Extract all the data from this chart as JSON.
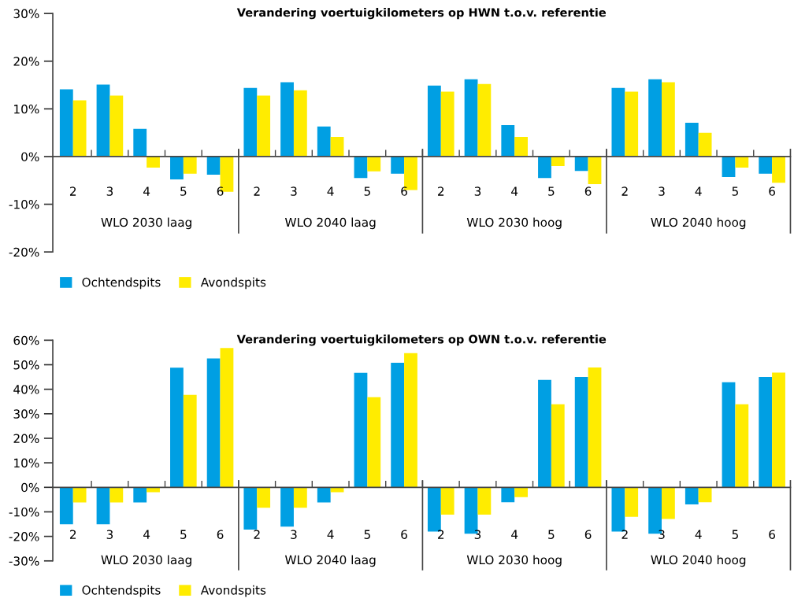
{
  "chart_data": [
    {
      "type": "bar",
      "title": "Verandering voertuigkilometers op HWN t.o.v. referentie",
      "categories": [
        "2",
        "3",
        "4",
        "5",
        "6",
        "2",
        "3",
        "4",
        "5",
        "6",
        "2",
        "3",
        "4",
        "5",
        "6",
        "2",
        "3",
        "4",
        "5",
        "6"
      ],
      "series": [
        {
          "name": "Ochtendspits",
          "color": "#009fe3",
          "values": [
            14.1,
            15.1,
            5.8,
            -4.8,
            -3.8,
            14.4,
            15.6,
            6.3,
            -4.5,
            -3.6,
            14.9,
            16.2,
            6.6,
            -4.5,
            -3.0,
            14.4,
            16.2,
            7.1,
            -4.3,
            -3.6
          ]
        },
        {
          "name": "Avondspits",
          "color": "#ffec00",
          "values": [
            11.8,
            12.8,
            -2.3,
            -3.6,
            -7.4,
            12.8,
            13.9,
            4.1,
            -3.1,
            -7.0,
            13.6,
            15.2,
            4.1,
            -2.0,
            -5.8,
            13.6,
            15.6,
            5.0,
            -2.3,
            -5.5
          ]
        }
      ],
      "annotations": [
        "WLO 2030 laag",
        "WLO 2040 laag",
        "WLO 2030 hoog",
        "WLO 2040 hoog"
      ],
      "ylim": [
        -20,
        30
      ],
      "yticks": [
        {
          "value": -20,
          "label": "-20%"
        },
        {
          "value": -10,
          "label": "-10%"
        },
        {
          "value": 0,
          "label": "0%"
        },
        {
          "value": 10,
          "label": "10%"
        },
        {
          "value": 20,
          "label": "20%"
        },
        {
          "value": 30,
          "label": "30%"
        }
      ],
      "legend": "bottom left"
    },
    {
      "type": "bar",
      "title": "Verandering voertuigkilometers op OWN t.o.v. referentie",
      "categories": [
        "2",
        "3",
        "4",
        "5",
        "6",
        "2",
        "3",
        "4",
        "5",
        "6",
        "2",
        "3",
        "4",
        "5",
        "6",
        "2",
        "3",
        "4",
        "5",
        "6"
      ],
      "series": [
        {
          "name": "Ochtendspits",
          "color": "#009fe3",
          "values": [
            -15.1,
            -15.1,
            -6.2,
            48.8,
            52.6,
            -17.2,
            -16.0,
            -6.2,
            46.7,
            50.8,
            -18.0,
            -18.9,
            -6.1,
            43.8,
            45.0,
            -18.0,
            -18.9,
            -7.0,
            42.9,
            45.0
          ]
        },
        {
          "name": "Avondspits",
          "color": "#ffec00",
          "values": [
            -6.2,
            -6.2,
            -2.0,
            37.7,
            56.8,
            -8.3,
            -8.3,
            -2.0,
            36.8,
            54.7,
            -11.1,
            -11.1,
            -4.0,
            33.9,
            48.9,
            -12.0,
            -12.9,
            -6.1,
            33.9,
            46.8
          ]
        }
      ],
      "annotations": [
        "WLO 2030 laag",
        "WLO 2040 laag",
        "WLO 2030 hoog",
        "WLO 2040 hoog"
      ],
      "ylim": [
        -30,
        60
      ],
      "yticks": [
        {
          "value": -30,
          "label": "-30%"
        },
        {
          "value": -20,
          "label": "-20%"
        },
        {
          "value": -10,
          "label": "-10%"
        },
        {
          "value": 0,
          "label": "0%"
        },
        {
          "value": 10,
          "label": "10%"
        },
        {
          "value": 20,
          "label": "20%"
        },
        {
          "value": 30,
          "label": "30%"
        },
        {
          "value": 40,
          "label": "40%"
        },
        {
          "value": 50,
          "label": "50%"
        },
        {
          "value": 60,
          "label": "60%"
        }
      ],
      "legend": "bottom left"
    }
  ]
}
